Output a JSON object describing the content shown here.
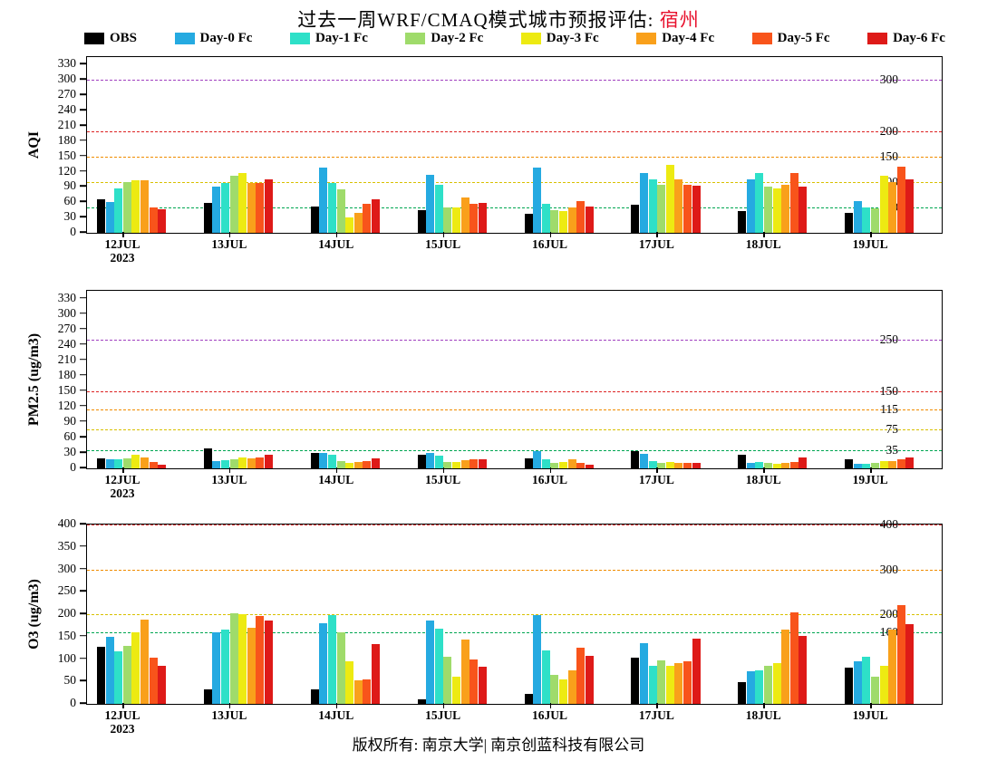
{
  "title": {
    "prefix": "过去一周WRF/CMAQ模式城市预报评估: ",
    "city": "宿州"
  },
  "footer": "版权所有: 南京大学| 南京创蓝科技有限公司",
  "legend": [
    {
      "label": "OBS",
      "color": "#000000"
    },
    {
      "label": "Day-0 Fc",
      "color": "#25aae1"
    },
    {
      "label": "Day-1 Fc",
      "color": "#2ee0c8"
    },
    {
      "label": "Day-2 Fc",
      "color": "#9fdb6b"
    },
    {
      "label": "Day-3 Fc",
      "color": "#edea12"
    },
    {
      "label": "Day-4 Fc",
      "color": "#f9a01b"
    },
    {
      "label": "Day-5 Fc",
      "color": "#f8541b"
    },
    {
      "label": "Day-6 Fc",
      "color": "#de1a18"
    }
  ],
  "chart_data": [
    {
      "type": "bar",
      "title": "",
      "ylabel": "AQI",
      "ylim": [
        0,
        345
      ],
      "yticks": [
        0,
        30,
        60,
        90,
        120,
        150,
        180,
        210,
        240,
        270,
        300,
        330
      ],
      "legend_position": "top",
      "grid": false,
      "categories": [
        "12JUL",
        "13JUL",
        "14JUL",
        "15JUL",
        "16JUL",
        "17JUL",
        "18JUL",
        "19JUL"
      ],
      "year": "2023",
      "series": [
        {
          "name": "OBS",
          "values": [
            65,
            58,
            52,
            45,
            38,
            55,
            42,
            40
          ]
        },
        {
          "name": "Day-0 Fc",
          "values": [
            60,
            90,
            128,
            113,
            128,
            118,
            105,
            62
          ]
        },
        {
          "name": "Day-1 Fc",
          "values": [
            88,
            97,
            97,
            95,
            57,
            105,
            118,
            50
          ]
        },
        {
          "name": "Day-2 Fc",
          "values": [
            100,
            112,
            85,
            50,
            45,
            95,
            90,
            48
          ]
        },
        {
          "name": "Day-3 Fc",
          "values": [
            103,
            117,
            30,
            50,
            42,
            133,
            88,
            112
          ]
        },
        {
          "name": "Day-4 Fc",
          "values": [
            103,
            98,
            40,
            70,
            50,
            105,
            95,
            100
          ]
        },
        {
          "name": "Day-5 Fc",
          "values": [
            50,
            98,
            57,
            57,
            62,
            95,
            118,
            130
          ]
        },
        {
          "name": "Day-6 Fc",
          "values": [
            47,
            105,
            65,
            58,
            52,
            92,
            90,
            105
          ]
        }
      ],
      "ref_lines": [
        {
          "value": 50,
          "label": "50",
          "color": "#00a651"
        },
        {
          "value": 100,
          "label": "100",
          "color": "#d8c000"
        },
        {
          "value": 150,
          "label": "150",
          "color": "#f08c00"
        },
        {
          "value": 200,
          "label": "200",
          "color": "#dd2222"
        },
        {
          "value": 300,
          "label": "300",
          "color": "#a040c0"
        }
      ]
    },
    {
      "type": "bar",
      "title": "",
      "ylabel": "PM2.5 (ug/m3)",
      "ylim": [
        0,
        345
      ],
      "yticks": [
        0,
        30,
        60,
        90,
        120,
        150,
        180,
        210,
        240,
        270,
        300,
        330
      ],
      "legend_position": "top",
      "grid": false,
      "categories": [
        "12JUL",
        "13JUL",
        "14JUL",
        "15JUL",
        "16JUL",
        "17JUL",
        "18JUL",
        "19JUL"
      ],
      "year": "2023",
      "series": [
        {
          "name": "OBS",
          "values": [
            20,
            38,
            30,
            26,
            20,
            33,
            26,
            18
          ]
        },
        {
          "name": "Day-0 Fc",
          "values": [
            18,
            14,
            30,
            30,
            33,
            28,
            10,
            8
          ]
        },
        {
          "name": "Day-1 Fc",
          "values": [
            18,
            15,
            27,
            25,
            17,
            14,
            12,
            8
          ]
        },
        {
          "name": "Day-2 Fc",
          "values": [
            20,
            18,
            14,
            12,
            10,
            10,
            10,
            10
          ]
        },
        {
          "name": "Day-3 Fc",
          "values": [
            26,
            22,
            10,
            12,
            12,
            12,
            8,
            14
          ]
        },
        {
          "name": "Day-4 Fc",
          "values": [
            22,
            20,
            12,
            15,
            17,
            10,
            10,
            14
          ]
        },
        {
          "name": "Day-5 Fc",
          "values": [
            12,
            22,
            14,
            17,
            10,
            10,
            12,
            18
          ]
        },
        {
          "name": "Day-6 Fc",
          "values": [
            7,
            26,
            20,
            18,
            7,
            11,
            22,
            22
          ]
        }
      ],
      "ref_lines": [
        {
          "value": 35,
          "label": "35",
          "color": "#00a651"
        },
        {
          "value": 75,
          "label": "75",
          "color": "#d8c000"
        },
        {
          "value": 115,
          "label": "115",
          "color": "#f08c00"
        },
        {
          "value": 150,
          "label": "150",
          "color": "#dd2222"
        },
        {
          "value": 250,
          "label": "250",
          "color": "#a040c0"
        }
      ]
    },
    {
      "type": "bar",
      "title": "",
      "ylabel": "O3 (ug/m3)",
      "ylim": [
        0,
        400
      ],
      "yticks": [
        0,
        50,
        100,
        150,
        200,
        250,
        300,
        350,
        400
      ],
      "legend_position": "top",
      "grid": false,
      "categories": [
        "12JUL",
        "13JUL",
        "14JUL",
        "15JUL",
        "16JUL",
        "17JUL",
        "18JUL",
        "19JUL"
      ],
      "year": "2023",
      "series": [
        {
          "name": "OBS",
          "values": [
            128,
            33,
            33,
            10,
            23,
            103,
            48,
            80
          ]
        },
        {
          "name": "Day-0 Fc",
          "values": [
            150,
            160,
            180,
            185,
            198,
            135,
            73,
            95
          ]
        },
        {
          "name": "Day-1 Fc",
          "values": [
            118,
            165,
            198,
            168,
            120,
            85,
            75,
            105
          ]
        },
        {
          "name": "Day-2 Fc",
          "values": [
            130,
            203,
            160,
            105,
            65,
            98,
            85,
            60
          ]
        },
        {
          "name": "Day-3 Fc",
          "values": [
            160,
            200,
            95,
            60,
            55,
            85,
            90,
            85
          ]
        },
        {
          "name": "Day-4 Fc",
          "values": [
            188,
            170,
            53,
            143,
            75,
            90,
            165,
            165
          ]
        },
        {
          "name": "Day-5 Fc",
          "values": [
            103,
            195,
            55,
            100,
            125,
            95,
            205,
            220
          ]
        },
        {
          "name": "Day-6 Fc",
          "values": [
            85,
            185,
            133,
            83,
            107,
            145,
            152,
            178
          ]
        }
      ],
      "ref_lines": [
        {
          "value": 160,
          "label": "160",
          "color": "#00a651"
        },
        {
          "value": 200,
          "label": "200",
          "color": "#d8c000"
        },
        {
          "value": 300,
          "label": "300",
          "color": "#f08c00"
        },
        {
          "value": 400,
          "label": "400",
          "color": "#dd2222"
        }
      ]
    }
  ]
}
